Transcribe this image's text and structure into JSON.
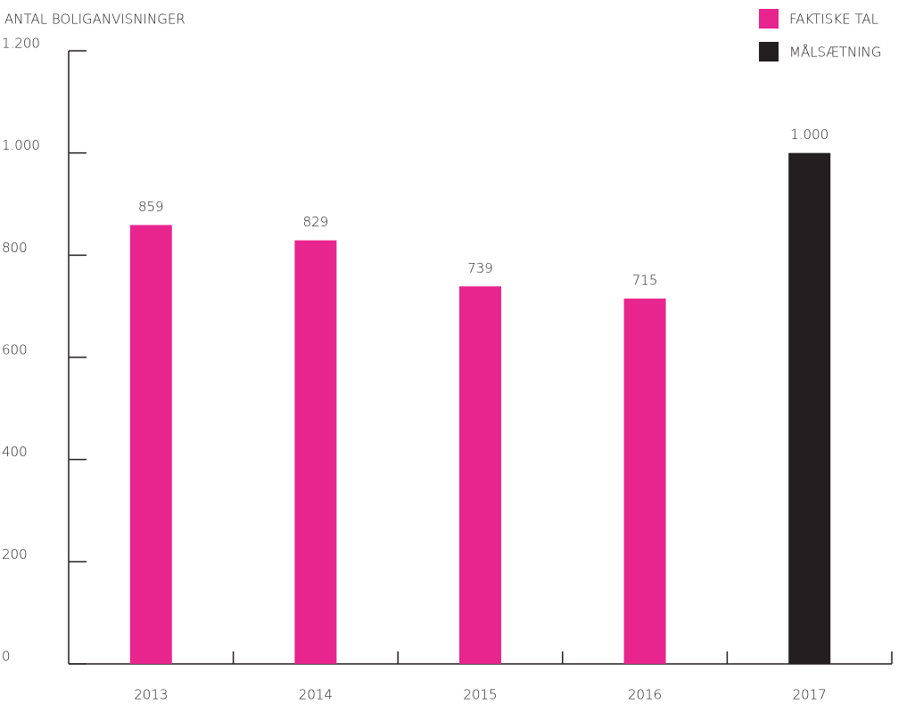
{
  "chart_data": {
    "type": "bar",
    "y_label": "ANTAL BOLIGANVISNINGER",
    "categories": [
      "2013",
      "2014",
      "2015",
      "2016",
      "2017"
    ],
    "series": [
      {
        "name": "FAKTISKE TAL",
        "color": "#e8258e",
        "values": [
          859,
          829,
          739,
          715,
          null
        ]
      },
      {
        "name": "MÅLSÆTNING",
        "color": "#231f20",
        "values": [
          null,
          null,
          null,
          null,
          1000
        ],
        "value_labels": [
          null,
          null,
          null,
          null,
          "1.000"
        ]
      }
    ],
    "ylim": [
      0,
      1200
    ],
    "yticks": [
      0,
      200,
      400,
      600,
      800,
      {
        "value": 1000,
        "label": "1.000"
      },
      {
        "value": 1200,
        "label": "1.200"
      }
    ],
    "legend": "top-right"
  }
}
